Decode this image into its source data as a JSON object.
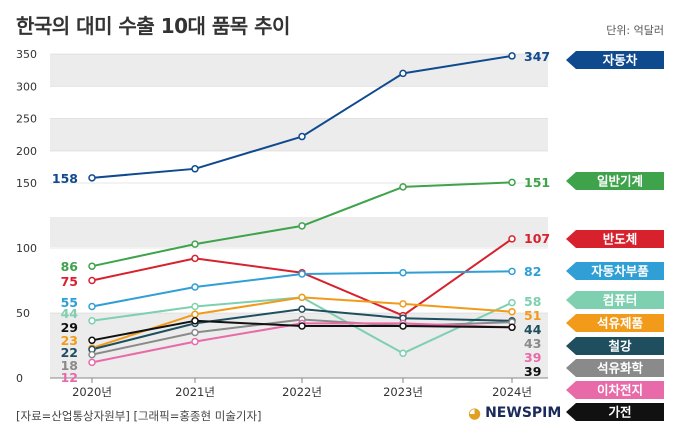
{
  "header": {
    "title": "한국의 대미 수출 10대 품목 추이",
    "unit": "단위: 억달러"
  },
  "footer": {
    "source": "[자료=산업통상자원부] [그래픽=홍종현 미술기자]",
    "brand": "NEWSPIM"
  },
  "chart_data": {
    "type": "line",
    "x": [
      "2020년",
      "2021년",
      "2022년",
      "2023년",
      "2024년"
    ],
    "yticks": [
      0,
      50,
      100,
      150,
      200,
      250,
      300,
      350
    ],
    "ytick_labels": [
      "0",
      "50",
      "100",
      "150",
      "200",
      "250",
      "300",
      "350"
    ],
    "ylim": [
      0,
      350
    ],
    "axis_break": [
      200,
      100
    ],
    "series": [
      {
        "name": "자동차",
        "color": "#0f4a8f",
        "values": [
          158,
          172,
          222,
          320,
          347
        ],
        "start_label": "158",
        "end_label": "347"
      },
      {
        "name": "일반기계",
        "color": "#3ea34a",
        "values": [
          86,
          103,
          117,
          147,
          151
        ],
        "start_label": "86",
        "end_label": "151"
      },
      {
        "name": "반도체",
        "color": "#d7222e",
        "values": [
          75,
          92,
          81,
          48,
          107
        ],
        "start_label": "75",
        "end_label": "107"
      },
      {
        "name": "자동차부품",
        "color": "#2f9fd6",
        "values": [
          55,
          70,
          80,
          81,
          82
        ],
        "start_label": "55",
        "end_label": "82"
      },
      {
        "name": "컴퓨터",
        "color": "#7fd0b0",
        "values": [
          44,
          55,
          62,
          19,
          58
        ],
        "start_label": "44",
        "end_label": "58"
      },
      {
        "name": "석유제품",
        "color": "#f29a1a",
        "values": [
          23,
          49,
          62,
          57,
          51
        ],
        "start_label": "23",
        "end_label": "51"
      },
      {
        "name": "철강",
        "color": "#1f4e5f",
        "values": [
          22,
          42,
          53,
          46,
          44
        ],
        "start_label": "22",
        "end_label": "44"
      },
      {
        "name": "석유화학",
        "color": "#8a8a8a",
        "values": [
          18,
          35,
          45,
          40,
          43
        ],
        "start_label": "18",
        "end_label": "43"
      },
      {
        "name": "이차전지",
        "color": "#e86aa8",
        "values": [
          12,
          28,
          42,
          42,
          39
        ],
        "start_label": "12",
        "end_label": "39"
      },
      {
        "name": "가전",
        "color": "#111111",
        "values": [
          29,
          44,
          40,
          40,
          39
        ],
        "start_label": "29",
        "end_label": "39"
      }
    ]
  }
}
